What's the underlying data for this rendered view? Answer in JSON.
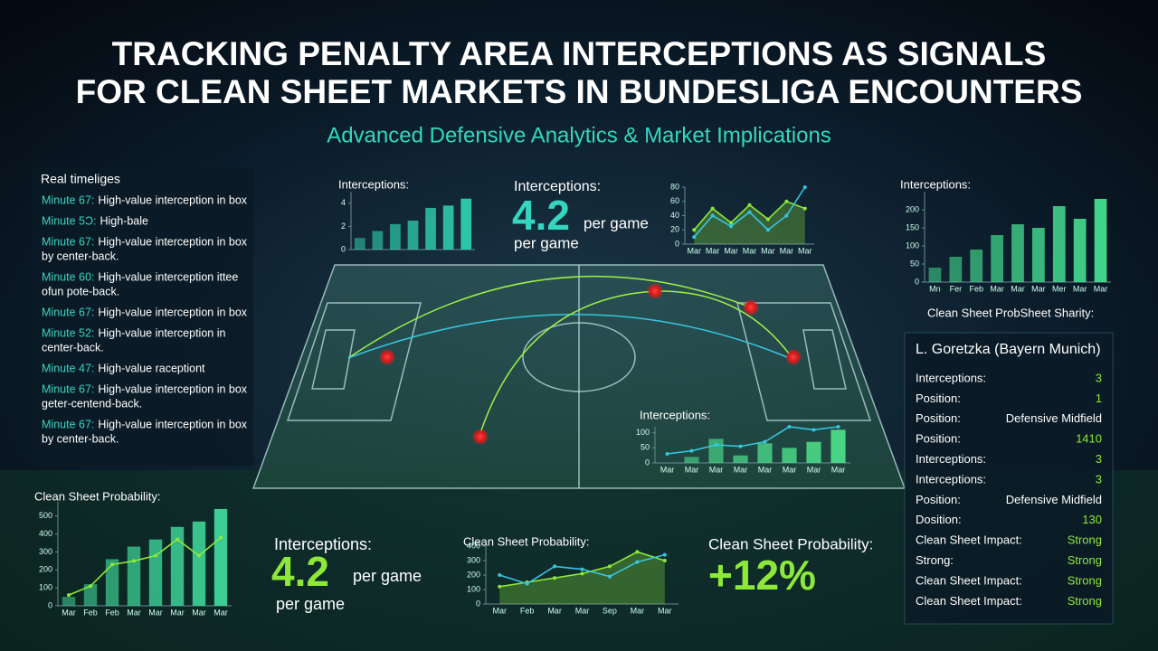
{
  "header": {
    "title_lines": [
      "TRACKING PENALTY AREA INTERCEPTIONS AS SIGNALS",
      "FOR CLEAN SHEET MARKETS IN BUNDESLIGA ENCOUNTERS"
    ],
    "subtitle": "Advanced Defensive Analytics & Market Implications"
  },
  "timeline": {
    "title": "Real timeliges",
    "items": [
      {
        "minute": "Minute 67:",
        "text": [
          "High-value interception in box"
        ]
      },
      {
        "minute": "Minute 5Ɔ:",
        "text": [
          "High-bale"
        ]
      },
      {
        "minute": "Minute 67:",
        "text": [
          "High-value interception in box",
          "by center-back."
        ]
      },
      {
        "minute": "Minute 60:",
        "text": [
          "High-value interception ittee",
          "ofun pote-back."
        ]
      },
      {
        "minute": "Minute 67:",
        "text": [
          "High-value interception in box"
        ]
      },
      {
        "minute": "Minute 52:",
        "text": [
          "High-value interception in",
          "center-back."
        ]
      },
      {
        "minute": "Minute 47:",
        "text": [
          "High-value raceptiont"
        ]
      },
      {
        "minute": "Minute 67:",
        "text": [
          "High-value interception in box",
          "geter-centend-back."
        ]
      },
      {
        "minute": "Minute 67:",
        "text": [
          "High-value interception in box",
          "by center-back."
        ]
      }
    ]
  },
  "stats": [
    {
      "label": "Interceptions:",
      "value": "4.2",
      "unit": "per game",
      "note": "per game"
    },
    {
      "label": "Interceptions:",
      "value": "4.2",
      "unit": "per game",
      "note": "per game"
    },
    {
      "label": "Clean Sheet Probability:",
      "value": "+12%"
    }
  ],
  "player": {
    "heading": "Clean Sheet ProbSheet Sharity:",
    "name": "L. Goretzka (Bayern Munich)",
    "rows": [
      [
        "Interceptions:",
        "3"
      ],
      [
        "Position:",
        "1"
      ],
      [
        "Position:",
        "Defensive Midfield"
      ],
      [
        "Position:",
        "1410"
      ],
      [
        "Interceptions:",
        "3"
      ],
      [
        "Interceptions:",
        "3"
      ],
      [
        "Position:",
        "Defensive Midfield"
      ],
      [
        "Dosition:",
        "130"
      ],
      [
        "Clean Sheet Impact:",
        "Strong"
      ],
      [
        "Strong:",
        "Strong"
      ],
      [
        "Clean Sheet Impact:",
        "Strong"
      ],
      [
        "Clean Sheet Impact:",
        "Strong"
      ]
    ]
  },
  "chart_data": [
    {
      "type": "bar",
      "title": "Interceptions:",
      "ylim": [
        0,
        5
      ],
      "yticks": [
        0,
        2,
        4
      ],
      "series": [
        {
          "type": "bar",
          "color": "#2fd0b0",
          "values": [
            1,
            1.6,
            2.2,
            2.5,
            3.6,
            3.8,
            4.4
          ]
        }
      ]
    },
    {
      "type": "line",
      "categories": [
        "Mar",
        "Mar",
        "Mar",
        "Mar",
        "Mar",
        "Mar",
        "Mar"
      ],
      "ylim": [
        0,
        80
      ],
      "yticks": [
        0,
        20,
        40,
        60,
        80
      ],
      "series": [
        {
          "type": "area",
          "color": "#8ee83a",
          "values": [
            20,
            50,
            30,
            55,
            35,
            60,
            50
          ]
        },
        {
          "type": "line",
          "color": "#36c6e0",
          "values": [
            10,
            40,
            25,
            45,
            20,
            40,
            80
          ]
        }
      ]
    },
    {
      "type": "bar",
      "title": "Interceptions:",
      "categories": [
        "Mn",
        "Fer",
        "Feb",
        "Mar",
        "Mar",
        "Mar",
        "Mer",
        "Mar",
        "Mar"
      ],
      "ylim": [
        0,
        250
      ],
      "yticks": [
        0,
        50,
        100,
        150,
        200
      ],
      "series": [
        {
          "type": "bar",
          "color": "#45dd90",
          "values": [
            40,
            70,
            90,
            130,
            160,
            150,
            210,
            175,
            230
          ]
        }
      ]
    },
    {
      "type": "bar",
      "title": "Interceptions:",
      "categories": [
        "Mar",
        "Mar",
        "Mar",
        "Mar",
        "Mar",
        "Mar",
        "Mar",
        "Mar"
      ],
      "ylim": [
        0,
        120
      ],
      "yticks": [
        0,
        50,
        100
      ],
      "series": [
        {
          "type": "bar",
          "color": "#4cdc8a",
          "values": [
            0,
            20,
            80,
            25,
            65,
            50,
            70,
            110
          ]
        },
        {
          "type": "line",
          "color": "#36c6e0",
          "values": [
            30,
            40,
            60,
            55,
            70,
            120,
            110,
            120
          ]
        }
      ]
    },
    {
      "type": "bar",
      "title": "Clean Sheet Probability:",
      "categories": [
        "Mar",
        "Feb",
        "Feb",
        "Mar",
        "Mar",
        "Mar",
        "Mar",
        "Mar"
      ],
      "ylim": [
        0,
        580
      ],
      "yticks": [
        0,
        100,
        200,
        300,
        400,
        500
      ],
      "series": [
        {
          "type": "bar",
          "color": "#3fd69a",
          "values": [
            50,
            120,
            260,
            330,
            370,
            440,
            470,
            540
          ]
        },
        {
          "type": "line",
          "color": "#8ee83a",
          "values": [
            60,
            110,
            230,
            250,
            280,
            370,
            280,
            380
          ]
        }
      ]
    },
    {
      "type": "line",
      "title": "Clean Sheet Probability:",
      "categories": [
        "Mar",
        "Feb",
        "Mar",
        "Mar",
        "Sep",
        "Mar",
        "Mar"
      ],
      "ylim": [
        0,
        400
      ],
      "yticks": [
        0,
        100,
        200,
        300,
        400
      ],
      "series": [
        {
          "type": "area",
          "color": "#8ee83a",
          "values": [
            120,
            150,
            180,
            210,
            260,
            360,
            300
          ]
        },
        {
          "type": "line",
          "color": "#36c6e0",
          "values": [
            200,
            140,
            260,
            240,
            190,
            290,
            340
          ]
        }
      ]
    }
  ]
}
